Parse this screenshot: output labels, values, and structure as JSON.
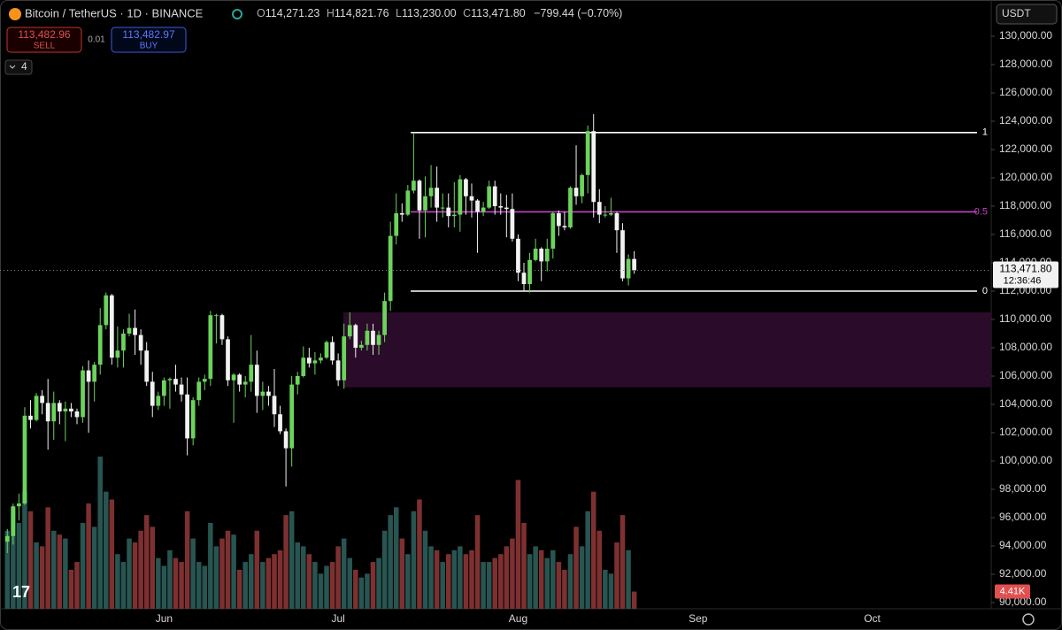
{
  "chart_data": {
    "type": "candlestick",
    "title": "Bitcoin / TetherUS · 1D · BINANCE",
    "legend_values": [
      {
        "key": "O",
        "text": "114,271.23"
      },
      {
        "key": "H",
        "text": "114,821.76"
      },
      {
        "key": "L",
        "text": "113,230.00"
      },
      {
        "key": "C",
        "text": "113,471.80"
      }
    ],
    "change": "−799.44 (−0.70%)",
    "trade": {
      "sell_price": "113,482.96",
      "sell": "SELL",
      "spread": "0.01",
      "buy_price": "113,482.97",
      "buy": "BUY"
    },
    "indicator_count": "4",
    "currency": "USDT",
    "last_price_label": "113,471.80",
    "countdown": "12:36:46",
    "volume_label": "4.41K",
    "up_color": "#6cd35c",
    "down_color": "#f2f2f2",
    "volume_up_color": "#2c5e5a",
    "volume_down_color": "#8c3535",
    "categories": [
      null,
      null,
      null,
      null,
      null,
      null,
      null,
      null,
      null,
      null,
      null,
      null,
      null,
      null,
      null,
      null,
      null,
      null,
      null,
      null,
      null,
      null,
      null,
      null,
      null,
      null,
      null,
      "Jun",
      null,
      null,
      null,
      null,
      null,
      null,
      null,
      null,
      null,
      null,
      null,
      null,
      null,
      null,
      null,
      null,
      null,
      null,
      null,
      null,
      null,
      null,
      null,
      null,
      null,
      null,
      null,
      null,
      null,
      "Jul",
      null,
      null,
      null,
      null,
      null,
      null,
      null,
      null,
      null,
      null,
      null,
      null,
      null,
      null,
      null,
      null,
      null,
      null,
      null,
      null,
      null,
      null,
      null,
      null,
      null,
      null,
      null,
      null,
      null,
      null,
      "Aug",
      null,
      null,
      null,
      null,
      null,
      null,
      null,
      null,
      null,
      null,
      null,
      null,
      null,
      null,
      null,
      null,
      null,
      null,
      null,
      null,
      null,
      null,
      null,
      null,
      null,
      null,
      null,
      null,
      null,
      null,
      "Sep",
      null,
      null,
      null,
      null,
      null,
      null,
      null,
      null,
      null,
      null,
      null,
      null,
      null,
      null,
      null,
      null,
      null,
      null,
      null,
      null,
      null,
      null,
      null,
      null,
      null,
      null,
      null,
      null,
      null,
      "Oct",
      null,
      null,
      null,
      null,
      null,
      null,
      null,
      null,
      null,
      null,
      null,
      null,
      null,
      null,
      null,
      null,
      null,
      null,
      null,
      null
    ],
    "open": [
      94300,
      94700,
      96800,
      97000,
      103200,
      102900,
      104600,
      104100,
      102800,
      104100,
      103500,
      103700,
      103500,
      103100,
      106400,
      105600,
      106800,
      109600,
      111700,
      107300,
      107800,
      109000,
      109400,
      108900,
      107800,
      105600,
      103900,
      104600,
      105700,
      105800,
      105400,
      104700,
      101600,
      104300,
      105600,
      105800,
      110300,
      110300,
      108600,
      105700,
      106100,
      105400,
      105600,
      106800,
      104600,
      104900,
      104600,
      103300,
      102100,
      100900,
      105400,
      106000,
      107300,
      106900,
      107100,
      107300,
      108400,
      107100,
      105700,
      108800,
      109600,
      108000,
      108200,
      109200,
      108200,
      108900,
      111300,
      115900,
      117500,
      117400,
      119100,
      119800,
      117700,
      118700,
      119300,
      117900,
      117900,
      117300,
      117400,
      119900,
      118700,
      118400,
      117600,
      117900,
      119400,
      118000,
      117900,
      117800,
      115700,
      113300,
      112500,
      114200,
      115000,
      114100,
      115000,
      117500,
      116600,
      116500,
      119300,
      118700,
      120200,
      123300,
      118300,
      117400,
      117400,
      117500,
      116300,
      112900,
      114271.23,
      null,
      null,
      null,
      null,
      null,
      null,
      null,
      null,
      null,
      null,
      null,
      null,
      null,
      null,
      null,
      null,
      null,
      null,
      null,
      null,
      null,
      null,
      null,
      null,
      null,
      null,
      null,
      null,
      null,
      null,
      null,
      null,
      null,
      null,
      null,
      null,
      null,
      null,
      null,
      null,
      null,
      null,
      null,
      null,
      null,
      null,
      null,
      null,
      null,
      null,
      null,
      null,
      null,
      null,
      null,
      null,
      null,
      null,
      null,
      null,
      null
    ],
    "high": [
      95200,
      97000,
      97700,
      103800,
      104300,
      104800,
      105000,
      105800,
      104900,
      104300,
      104200,
      104100,
      103700,
      106700,
      107100,
      107000,
      110800,
      111900,
      111800,
      109500,
      109300,
      110400,
      110700,
      109300,
      108400,
      106300,
      104900,
      105900,
      105900,
      106800,
      105900,
      105900,
      104500,
      105900,
      106100,
      110600,
      110400,
      110400,
      108800,
      106200,
      106200,
      106000,
      108900,
      107800,
      105600,
      105300,
      106500,
      103900,
      102300,
      106000,
      106300,
      108100,
      108000,
      107700,
      107600,
      108500,
      108800,
      107600,
      109700,
      110500,
      109700,
      108500,
      109700,
      109700,
      109200,
      111900,
      116900,
      118900,
      118200,
      119500,
      123200,
      119900,
      120100,
      120900,
      120800,
      118900,
      118900,
      119700,
      120200,
      120000,
      119600,
      118500,
      118300,
      119800,
      119800,
      118900,
      118800,
      118900,
      116000,
      114000,
      114700,
      115700,
      115100,
      115700,
      117600,
      117700,
      117600,
      119400,
      122300,
      120300,
      123700,
      124500,
      119200,
      118000,
      118600,
      117600,
      116800,
      114600,
      114821.76,
      null,
      null,
      null,
      null,
      null,
      null,
      null,
      null,
      null,
      null,
      null,
      null,
      null,
      null,
      null,
      null,
      null,
      null,
      null,
      null,
      null,
      null,
      null,
      null,
      null,
      null,
      null,
      null,
      null,
      null,
      null,
      null,
      null,
      null,
      null,
      null,
      null,
      null,
      null,
      null,
      null,
      null,
      null,
      null,
      null,
      null,
      null,
      null,
      null,
      null,
      null,
      null,
      null,
      null,
      null,
      null,
      null,
      null,
      null,
      null,
      null
    ],
    "low": [
      93500,
      94100,
      95800,
      96900,
      102300,
      102800,
      103300,
      100800,
      101500,
      102600,
      101400,
      103100,
      102600,
      102700,
      102000,
      104200,
      106100,
      109300,
      106800,
      106600,
      106600,
      108800,
      107500,
      106800,
      105300,
      103100,
      103600,
      103900,
      103700,
      104900,
      104200,
      100400,
      101100,
      103900,
      105000,
      105300,
      108300,
      108200,
      105300,
      102700,
      104900,
      104500,
      104900,
      103400,
      103600,
      103900,
      102400,
      101900,
      98200,
      99600,
      104700,
      105900,
      106600,
      106100,
      106900,
      107200,
      106800,
      105300,
      105100,
      108600,
      107300,
      107800,
      107800,
      107500,
      107500,
      108400,
      110600,
      115300,
      116900,
      117300,
      118900,
      115700,
      115800,
      117900,
      116900,
      117200,
      116500,
      116500,
      116200,
      117400,
      117200,
      114700,
      117300,
      117800,
      117400,
      117400,
      115800,
      115500,
      112700,
      112000,
      111900,
      114100,
      112700,
      113400,
      114300,
      115900,
      116300,
      116400,
      118100,
      118200,
      118900,
      117200,
      116800,
      117200,
      117300,
      114700,
      112700,
      112400,
      113230,
      null,
      null,
      null,
      null,
      null,
      null,
      null,
      null,
      null,
      null,
      null,
      null,
      null,
      null,
      null,
      null,
      null,
      null,
      null,
      null,
      null,
      null,
      null,
      null,
      null,
      null,
      null,
      null,
      null,
      null,
      null,
      null,
      null,
      null,
      null,
      null,
      null,
      null,
      null,
      null,
      null,
      null,
      null,
      null,
      null,
      null,
      null,
      null,
      null,
      null,
      null,
      null,
      null,
      null,
      null,
      null,
      null,
      null,
      null,
      null,
      null
    ],
    "close": [
      94700,
      96800,
      97000,
      103200,
      102900,
      104600,
      104100,
      102800,
      104100,
      103500,
      103700,
      103500,
      103100,
      106400,
      105600,
      106800,
      109600,
      111700,
      107300,
      107800,
      109000,
      109400,
      108900,
      107800,
      105600,
      103900,
      104600,
      105700,
      105800,
      105400,
      104700,
      101600,
      104300,
      105600,
      105800,
      110300,
      110300,
      108600,
      105700,
      106100,
      105400,
      105600,
      106800,
      104600,
      104900,
      104600,
      103300,
      102100,
      100900,
      105400,
      106000,
      107300,
      106900,
      107100,
      107300,
      108400,
      107100,
      105700,
      108800,
      109600,
      108000,
      108200,
      109200,
      108200,
      108900,
      111300,
      115900,
      117500,
      117400,
      119100,
      119800,
      117700,
      118700,
      119300,
      117900,
      117900,
      117300,
      117400,
      119900,
      118700,
      118400,
      117600,
      117900,
      119400,
      118000,
      117900,
      117800,
      115700,
      113300,
      112500,
      114200,
      115000,
      114100,
      115000,
      117500,
      116600,
      116500,
      119300,
      118700,
      120200,
      123300,
      118300,
      117400,
      117400,
      117500,
      116300,
      112900,
      114271.23,
      113471.8,
      null,
      null,
      null,
      null,
      null,
      null,
      null,
      null,
      null,
      null,
      null,
      null,
      null,
      null,
      null,
      null,
      null,
      null,
      null,
      null,
      null,
      null,
      null,
      null,
      null,
      null,
      null,
      null,
      null,
      null,
      null,
      null,
      null,
      null,
      null,
      null,
      null,
      null,
      null,
      null,
      null,
      null,
      null,
      null,
      null,
      null,
      null,
      null,
      null,
      null,
      null,
      null,
      null,
      null,
      null,
      null,
      null,
      null,
      null,
      null,
      null
    ],
    "volume": [
      20000,
      26000,
      22000,
      30000,
      25000,
      17000,
      16000,
      26000,
      20000,
      19000,
      18000,
      10000,
      12000,
      22000,
      27000,
      21000,
      39000,
      30000,
      28000,
      14000,
      12000,
      18000,
      17000,
      20000,
      24000,
      21000,
      13000,
      11000,
      15000,
      13000,
      12000,
      25000,
      18000,
      12000,
      11000,
      22000,
      16000,
      18000,
      20000,
      19000,
      10000,
      12000,
      14000,
      20000,
      12000,
      13000,
      14000,
      15000,
      24000,
      25000,
      17000,
      16000,
      14000,
      12000,
      9000,
      11000,
      12000,
      16000,
      18000,
      13000,
      10000,
      8000,
      9000,
      12000,
      13000,
      20000,
      24000,
      26000,
      18000,
      14000,
      25000,
      28000,
      20000,
      16000,
      15000,
      12000,
      14000,
      15000,
      16000,
      14000,
      15000,
      24000,
      12000,
      12000,
      13000,
      14000,
      16000,
      18000,
      33000,
      22000,
      14000,
      16000,
      15000,
      13000,
      15000,
      12000,
      10000,
      14000,
      21000,
      16000,
      25000,
      30000,
      20000,
      10000,
      9000,
      17000,
      24000,
      15000,
      4410,
      null,
      null,
      null,
      null,
      null,
      null,
      null,
      null,
      null,
      null,
      null,
      null,
      null,
      null,
      null,
      null,
      null,
      null,
      null,
      null,
      null,
      null,
      null,
      null,
      null,
      null,
      null,
      null,
      null,
      null,
      null,
      null,
      null,
      null,
      null,
      null,
      null,
      null,
      null,
      null,
      null,
      null,
      null,
      null,
      null,
      null,
      null,
      null,
      null,
      null,
      null,
      null,
      null,
      null,
      null,
      null,
      null,
      null,
      null,
      null,
      null
    ],
    "ylim": [
      90000,
      130000
    ],
    "yticks": [
      {
        "value": 90000,
        "label": "90,000.00"
      },
      {
        "value": 92000,
        "label": "92,000.00"
      },
      {
        "value": 94000,
        "label": "94,000.00"
      },
      {
        "value": 96000,
        "label": "96,000.00"
      },
      {
        "value": 98000,
        "label": "98,000.00"
      },
      {
        "value": 100000,
        "label": "100,000.00"
      },
      {
        "value": 102000,
        "label": "102,000.00"
      },
      {
        "value": 104000,
        "label": "104,000.00"
      },
      {
        "value": 106000,
        "label": "106,000.00"
      },
      {
        "value": 108000,
        "label": "108,000.00"
      },
      {
        "value": 110000,
        "label": "110,000.00"
      },
      {
        "value": 112000,
        "label": "112,000.00"
      },
      {
        "value": 114000,
        "label": "114,000.00"
      },
      {
        "value": 116000,
        "label": "116,000.00"
      },
      {
        "value": 118000,
        "label": "118,000.00"
      },
      {
        "value": 120000,
        "label": "120,000.00"
      },
      {
        "value": 122000,
        "label": "122,000.00"
      },
      {
        "value": 124000,
        "label": "124,000.00"
      },
      {
        "value": 126000,
        "label": "126,000.00"
      },
      {
        "value": 128000,
        "label": "128,000.00"
      },
      {
        "value": 130000,
        "label": "130,000.00"
      }
    ],
    "fib_levels": [
      {
        "label": "1",
        "value": 123200,
        "color": "#ffffff"
      },
      {
        "label": "0.5",
        "value": 117600,
        "color": "#c443c4"
      },
      {
        "label": "0",
        "value": 112000,
        "color": "#ffffff"
      }
    ],
    "zone": {
      "range": [
        105200,
        110500
      ],
      "color": "#2a0b29"
    }
  }
}
